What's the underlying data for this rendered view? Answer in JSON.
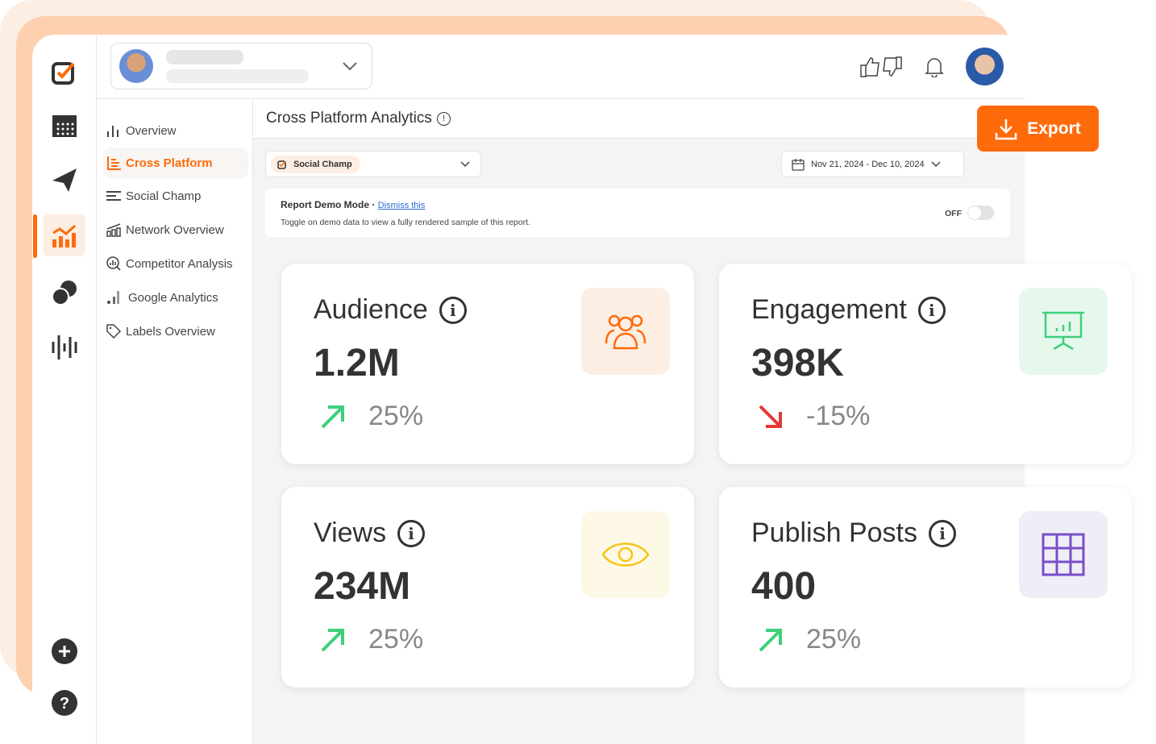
{
  "header": {
    "account_dropdown": "chevron-down-icon"
  },
  "subnav": [
    {
      "label": "Overview",
      "icon": "bar-chart-icon"
    },
    {
      "label": "Cross Platform",
      "icon": "cross-platform-icon",
      "selected": true
    },
    {
      "label": "Social Champ",
      "icon": "lines-icon"
    },
    {
      "label": "Network Overview",
      "icon": "network-chart-icon"
    },
    {
      "label": "Competitor Analysis",
      "icon": "magnifier-chart-icon"
    },
    {
      "label": "Google Analytics",
      "icon": "signal-icon"
    },
    {
      "label": "Labels Overview",
      "icon": "tag-icon"
    }
  ],
  "page": {
    "title": "Cross Platform Analytics",
    "export_label": "Export"
  },
  "filters": {
    "profile": "Social Champ",
    "date_range": "Nov 21, 2024 - Dec 10, 2024"
  },
  "demo": {
    "title": "Report Demo Mode",
    "separator": "·",
    "dismiss": "Dismiss this",
    "description": "Toggle on demo data to view a fully rendered sample of this report.",
    "toggle_label": "OFF",
    "toggle_on": false
  },
  "cards": [
    {
      "label": "Audience",
      "value": "1.2M",
      "change": "25%",
      "trend": "up"
    },
    {
      "label": "Engagement",
      "value": "398K",
      "change": "-15%",
      "trend": "down"
    },
    {
      "label": "Views",
      "value": "234M",
      "change": "25%",
      "trend": "up"
    },
    {
      "label": "Publish Posts",
      "value": "400",
      "change": "25%",
      "trend": "up"
    }
  ],
  "colors": {
    "accent": "#ff6b0b",
    "up": "#3ecf7a",
    "down": "#e53935"
  }
}
